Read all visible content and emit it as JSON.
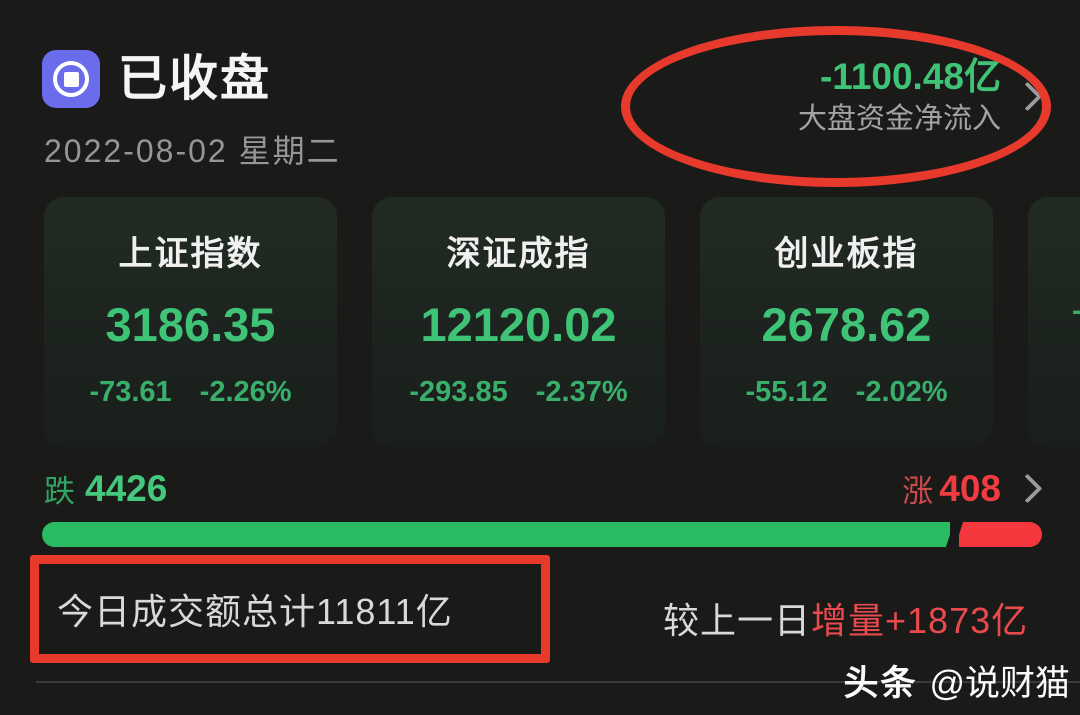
{
  "header": {
    "status_label": "已收盘",
    "date": "2022-08-02 星期二",
    "net_inflow": {
      "value": "-1100.48亿",
      "label": "大盘资金净流入"
    }
  },
  "indices": [
    {
      "name": "上证指数",
      "value": "3186.35",
      "change": "-73.61",
      "change_pct": "-2.26%"
    },
    {
      "name": "深证成指",
      "value": "12120.02",
      "change": "-293.85",
      "change_pct": "-2.37%"
    },
    {
      "name": "创业板指",
      "value": "2678.62",
      "change": "-55.12",
      "change_pct": "-2.02%"
    },
    {
      "name": "",
      "value": "",
      "change": "-",
      "change_pct": "",
      "partial": true
    }
  ],
  "breadth": {
    "down_label": "跌",
    "down_count": "4426",
    "up_label": "涨",
    "up_count": "408"
  },
  "turnover": {
    "today_text": "今日成交额总计11811亿",
    "vs_prev_label": "较上一日",
    "vs_prev_delta": "增量+1873亿"
  },
  "watermark": {
    "brand": "头条",
    "handle": "@说财猫"
  },
  "colors": {
    "background": "#1a1a19",
    "card_background": "#1c241e",
    "green": "#3fc377",
    "red": "#f03b41",
    "annotation_red": "#e73a2c",
    "icon_purple": "#6a6cec",
    "muted_gray": "#969696"
  }
}
